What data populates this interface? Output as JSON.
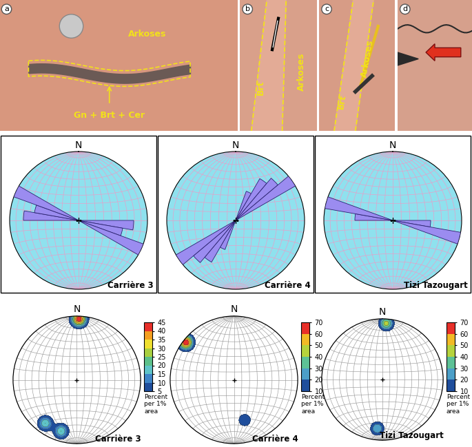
{
  "photos": [
    {
      "label": "a",
      "texts": [
        "Arkoses",
        "Gn + Brt + Cer"
      ]
    },
    {
      "label": "b",
      "texts": [
        "Brt",
        "Arkoses"
      ]
    },
    {
      "label": "c",
      "texts": [
        "Brt",
        "Arkoses"
      ]
    },
    {
      "label": "d",
      "texts": []
    }
  ],
  "chart_data": [
    {
      "type": "rose",
      "title": "Carrière 3",
      "north_label": "N",
      "bin_width": 10,
      "directions": [
        95,
        105,
        115,
        275,
        285,
        295
      ],
      "values": [
        0.8,
        0.65,
        1.0,
        0.8,
        0.65,
        1.0
      ],
      "ylim": [
        0,
        1
      ],
      "color": "#9b8cf0",
      "tick_labels": false,
      "grid": true
    },
    {
      "type": "rose",
      "title": "Carrière 4",
      "north_label": "N",
      "bin_width": 10,
      "directions": [
        25,
        35,
        45,
        55,
        205,
        215,
        225,
        235
      ],
      "values": [
        0.45,
        0.7,
        0.8,
        1.0,
        0.45,
        0.7,
        0.8,
        1.0
      ],
      "ylim": [
        0,
        1
      ],
      "color": "#9b8cf0",
      "tick_labels": false,
      "grid": true
    },
    {
      "type": "rose",
      "title": "Tizi Tazougart",
      "north_label": "N",
      "bin_width": 10,
      "directions": [
        95,
        105,
        275,
        285
      ],
      "values": [
        0.55,
        1.0,
        0.55,
        1.0
      ],
      "ylim": [
        0,
        1
      ],
      "color": "#9b8cf0",
      "tick_labels": false,
      "grid": true
    },
    {
      "type": "density",
      "title": "Carrière 3",
      "north_label": "N",
      "clusters": [
        {
          "trend": 2,
          "plunge": 5,
          "peak": 45
        },
        {
          "trend": 216,
          "plunge": 17,
          "peak": 20
        },
        {
          "trend": 197,
          "plunge": 17,
          "peak": 20
        }
      ],
      "colorbar_label": "Percent\nper 1%\narea",
      "clim": [
        5,
        45
      ],
      "cticks": [
        5,
        10,
        15,
        20,
        25,
        30,
        35,
        40,
        45
      ],
      "tick_labels": false,
      "grid": true
    },
    {
      "type": "density",
      "title": "Carrière 4",
      "north_label": "N",
      "clusters": [
        {
          "trend": 308,
          "plunge": 5,
          "peak": 70
        },
        {
          "trend": 165,
          "plunge": 35,
          "peak": 20
        }
      ],
      "colorbar_label": "Percent\nper 1%\narea",
      "clim": [
        10,
        70
      ],
      "cticks": [
        10,
        20,
        30,
        40,
        50,
        60,
        70
      ],
      "tick_labels": false,
      "grid": true
    },
    {
      "type": "density",
      "title": "Tizi Tazougart",
      "north_label": "N",
      "clusters": [
        {
          "trend": 4,
          "plunge": 8,
          "peak": 45
        },
        {
          "trend": 186,
          "plunge": 20,
          "peak": 30
        }
      ],
      "colorbar_label": "Percent\nper 1%\narea",
      "clim": [
        10,
        70
      ],
      "cticks": [
        10,
        20,
        30,
        40,
        50,
        60,
        70
      ],
      "tick_labels": false,
      "grid": true
    }
  ]
}
